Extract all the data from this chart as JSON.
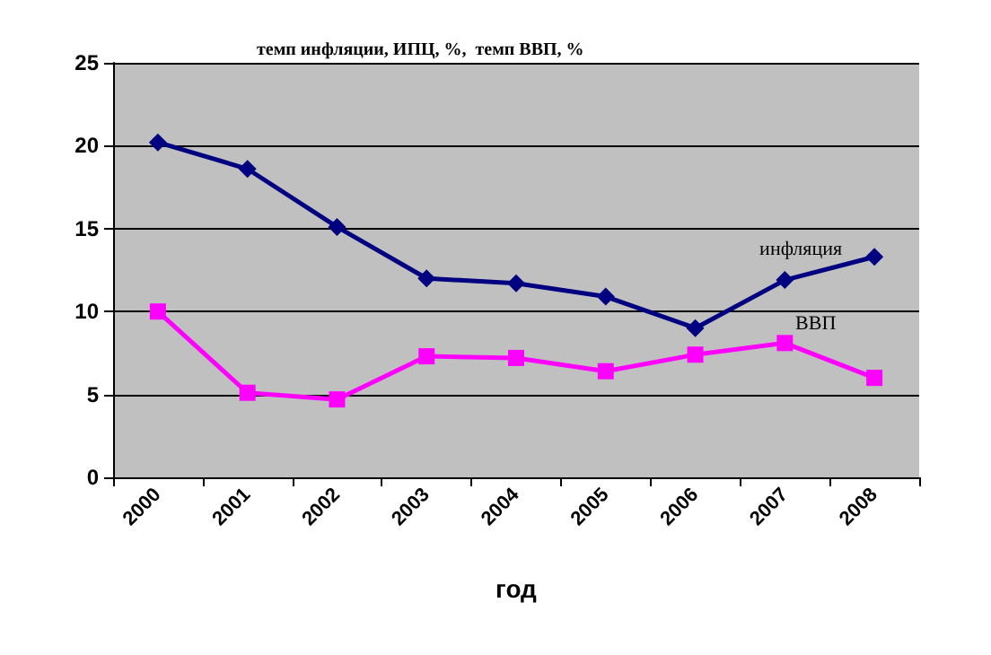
{
  "chart_data": {
    "type": "line",
    "title": "темп инфляции, ИПЦ, %,  темп ВВП, %",
    "xlabel": "год",
    "categories": [
      "2000",
      "2001",
      "2002",
      "2003",
      "2004",
      "2005",
      "2006",
      "2007",
      "2008"
    ],
    "series": [
      {
        "name": "инфляция",
        "color": "#000080",
        "marker": "diamond",
        "values": [
          20.2,
          18.6,
          15.1,
          12.0,
          11.7,
          10.9,
          9.0,
          11.9,
          13.3
        ]
      },
      {
        "name": "ВВП",
        "color": "#ff00ff",
        "marker": "square",
        "values": [
          10.0,
          5.1,
          4.7,
          7.3,
          7.2,
          6.4,
          7.4,
          8.1,
          6.0
        ]
      }
    ],
    "ylim": [
      0,
      25
    ],
    "yticks": [
      0,
      5,
      10,
      15,
      20,
      25
    ],
    "grid": "y",
    "legend": false
  }
}
